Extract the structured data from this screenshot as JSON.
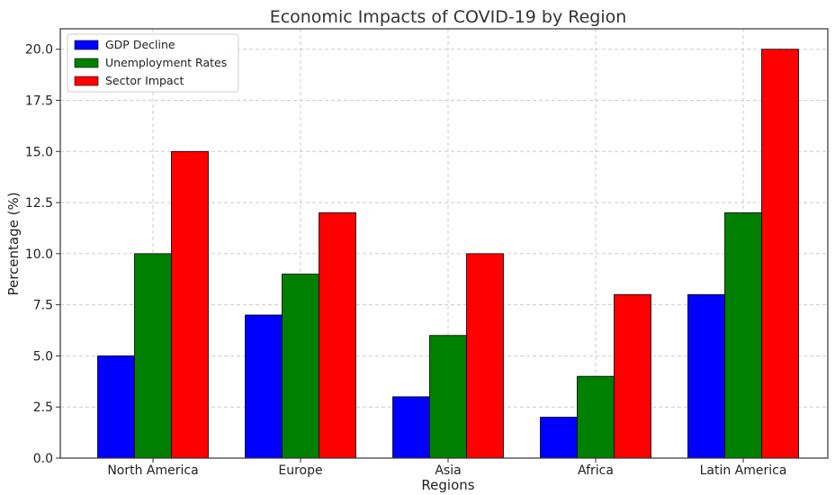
{
  "chart_data": {
    "type": "bar",
    "title": "Economic Impacts of COVID-19 by Region",
    "xlabel": "Regions",
    "ylabel": "Percentage (%)",
    "categories": [
      "North America",
      "Europe",
      "Asia",
      "Africa",
      "Latin America"
    ],
    "series": [
      {
        "name": "GDP Decline",
        "color": "#0000ff",
        "values": [
          5,
          7,
          3,
          2,
          8
        ]
      },
      {
        "name": "Unemployment Rates",
        "color": "#008000",
        "values": [
          10,
          9,
          6,
          4,
          12
        ]
      },
      {
        "name": "Sector Impact",
        "color": "#ff0000",
        "values": [
          15,
          12,
          10,
          8,
          20
        ]
      }
    ],
    "ylim": [
      0,
      21
    ],
    "yticks": [
      "0.0",
      "2.5",
      "5.0",
      "7.5",
      "10.0",
      "12.5",
      "15.0",
      "17.5",
      "20.0"
    ],
    "grid": true,
    "legend_position": "top-left"
  }
}
